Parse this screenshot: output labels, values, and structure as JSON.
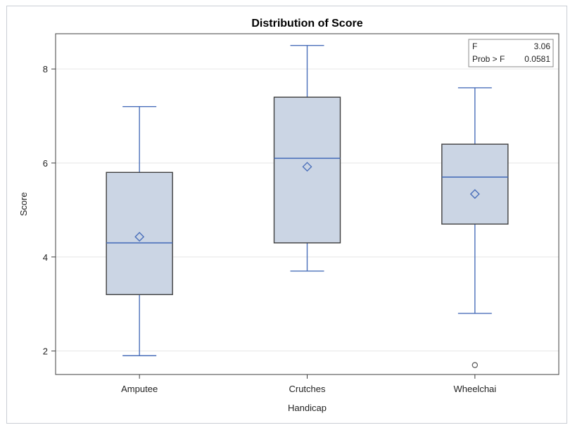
{
  "chart_data": {
    "type": "box",
    "title": "Distribution of Score",
    "xlabel": "Handicap",
    "ylabel": "Score",
    "ylim": [
      1.5,
      8.75
    ],
    "yticks": [
      2,
      4,
      6,
      8
    ],
    "grid": true,
    "categories": [
      "Amputee",
      "Crutches",
      "Wheelchai"
    ],
    "boxes": [
      {
        "category": "Amputee",
        "whisker_low": 1.9,
        "q1": 3.2,
        "median": 4.3,
        "q3": 5.8,
        "whisker_high": 7.2,
        "mean": 4.43,
        "outliers": []
      },
      {
        "category": "Crutches",
        "whisker_low": 3.7,
        "q1": 4.3,
        "median": 6.1,
        "q3": 7.4,
        "whisker_high": 8.5,
        "mean": 5.92,
        "outliers": []
      },
      {
        "category": "Wheelchai",
        "whisker_low": 2.8,
        "q1": 4.7,
        "median": 5.7,
        "q3": 6.4,
        "whisker_high": 7.6,
        "mean": 5.34,
        "outliers": [
          1.7
        ]
      }
    ],
    "inset_stats": {
      "rows": [
        {
          "label": "F",
          "value": "3.06"
        },
        {
          "label": "Prob > F",
          "value": "0.0581"
        }
      ],
      "placement": "top-right"
    },
    "colors": {
      "box_fill": "#cbd5e4",
      "box_edge": "#3f3f3f",
      "line": "#4a6fba",
      "grid": "#e6e6e6",
      "outlier": "#555555"
    }
  }
}
